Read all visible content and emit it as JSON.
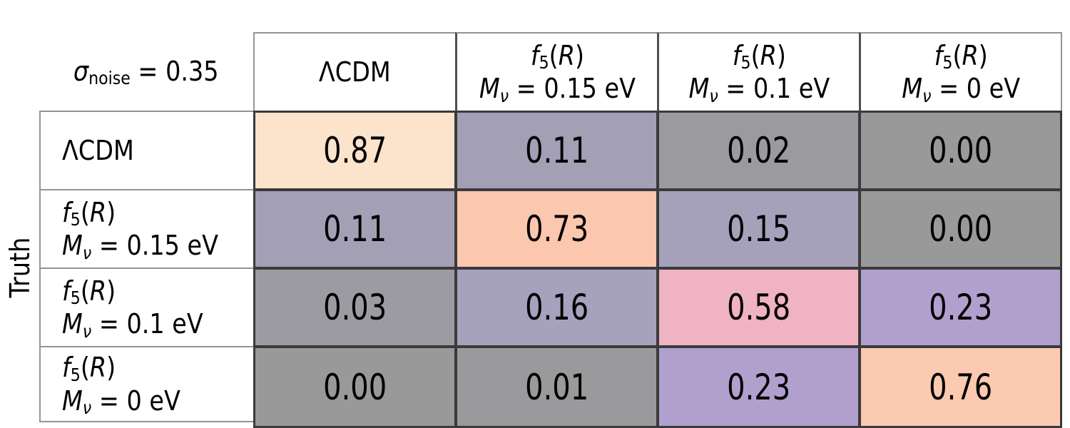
{
  "figure": {
    "corner_label_html": "<i>σ</i><sub>noise</sub> = 0.35",
    "y_axis_label": "Truth",
    "col_headers_html": [
      "ΛCDM",
      "<i>f</i><sub>5</sub>(<i>R</i>)<br><i>M</i><sub><i>ν</i></sub> = 0.15 eV",
      "<i>f</i><sub>5</sub>(<i>R</i>)<br><i>M</i><sub><i>ν</i></sub> = 0.1 eV",
      "<i>f</i><sub>5</sub>(<i>R</i>)<br><i>M</i><sub><i>ν</i></sub> = 0 eV"
    ],
    "row_headers_html": [
      "ΛCDM",
      "<i>f</i><sub>5</sub>(<i>R</i>)<br><i>M</i><sub><i>ν</i></sub> = 0.15 eV",
      "<i>f</i><sub>5</sub>(<i>R</i>)<br><i>M</i><sub><i>ν</i></sub> = 0.1 eV",
      "<i>f</i><sub>5</sub>(<i>R</i>)<br><i>M</i><sub><i>ν</i></sub> = 0 eV"
    ],
    "cells": [
      [
        {
          "t": "0.87",
          "bg": "#fce3cb"
        },
        {
          "t": "0.11",
          "bg": "#a39fb5"
        },
        {
          "t": "0.02",
          "bg": "#9b9a9e"
        },
        {
          "t": "0.00",
          "bg": "#999999"
        }
      ],
      [
        {
          "t": "0.11",
          "bg": "#a39fb5"
        },
        {
          "t": "0.73",
          "bg": "#fbc7ae"
        },
        {
          "t": "0.15",
          "bg": "#a5a1bb"
        },
        {
          "t": "0.00",
          "bg": "#999999"
        }
      ],
      [
        {
          "t": "0.03",
          "bg": "#9c9ba1"
        },
        {
          "t": "0.16",
          "bg": "#a6a1bc"
        },
        {
          "t": "0.58",
          "bg": "#f0b3c4"
        },
        {
          "t": "0.23",
          "bg": "#b1a0ce"
        }
      ],
      [
        {
          "t": "0.00",
          "bg": "#999999"
        },
        {
          "t": "0.01",
          "bg": "#9a999b"
        },
        {
          "t": "0.23",
          "bg": "#b1a0ce"
        },
        {
          "t": "0.76",
          "bg": "#fccab1"
        }
      ]
    ],
    "colors": {
      "white_cell_border": "#949494",
      "header_separator_border": "#4f4f4f",
      "matrix_cell_border": "#3a3a3a",
      "text": "#000000",
      "background": "#ffffff"
    }
  },
  "chart_data": {
    "type": "heatmap",
    "title": "σ_noise = 0.35",
    "xlabel": "",
    "ylabel": "Truth",
    "x_categories": [
      "ΛCDM",
      "f5(R) Mν = 0.15 eV",
      "f5(R) Mν = 0.1 eV",
      "f5(R) Mν = 0 eV"
    ],
    "y_categories": [
      "ΛCDM",
      "f5(R) Mν = 0.15 eV",
      "f5(R) Mν = 0.1 eV",
      "f5(R) Mν = 0 eV"
    ],
    "values": [
      [
        0.87,
        0.11,
        0.02,
        0.0
      ],
      [
        0.11,
        0.73,
        0.15,
        0.0
      ],
      [
        0.03,
        0.16,
        0.58,
        0.23
      ],
      [
        0.0,
        0.01,
        0.23,
        0.76
      ]
    ],
    "legend_position": "none",
    "grid": false
  }
}
